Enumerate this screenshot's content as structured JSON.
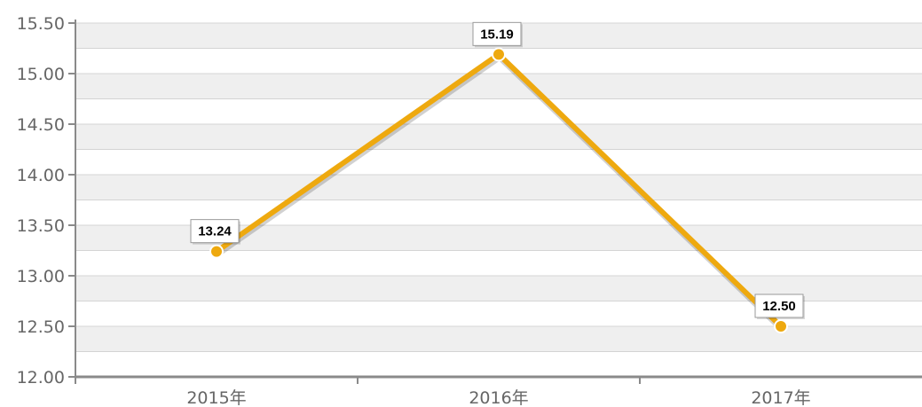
{
  "chart_data": {
    "type": "line",
    "categories": [
      "2015年",
      "2016年",
      "2017年"
    ],
    "series": [
      {
        "values": [
          13.24,
          15.19,
          12.5
        ],
        "labels": [
          "13.24",
          "15.19",
          "12.50"
        ]
      }
    ],
    "yticks": [
      "12.00",
      "12.50",
      "13.00",
      "13.50",
      "14.00",
      "14.50",
      "15.00",
      "15.50"
    ],
    "ylim": [
      12.0,
      15.5
    ],
    "grid": true,
    "colors": {
      "line": "#eea90f",
      "band": "#efefef",
      "grid": "#d4d4d4",
      "axis": "#8a8a8a",
      "marker_fill": "#eea90f",
      "marker_stroke": "#ffffff"
    }
  }
}
